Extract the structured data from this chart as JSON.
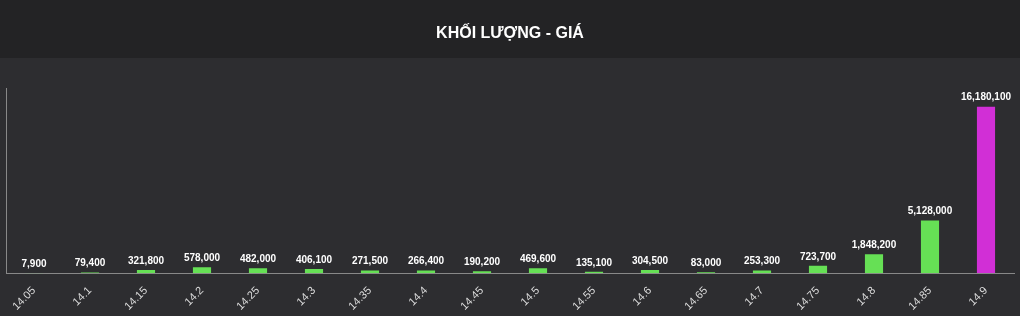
{
  "chart_data": {
    "type": "bar",
    "title": "KHỐI LƯỢNG - GIÁ",
    "categories": [
      "14.05",
      "14.1",
      "14.15",
      "14.2",
      "14.25",
      "14.3",
      "14.35",
      "14.4",
      "14.45",
      "14.5",
      "14.55",
      "14.6",
      "14.65",
      "14.7",
      "14.75",
      "14.8",
      "14.85",
      "14.9"
    ],
    "values": [
      7900,
      79400,
      321800,
      578000,
      482000,
      406100,
      271500,
      266400,
      190200,
      469600,
      135100,
      304500,
      83000,
      253300,
      723700,
      1848200,
      5128000,
      16180100
    ],
    "value_labels": [
      "7,900",
      "79,400",
      "321,800",
      "578,000",
      "482,000",
      "406,100",
      "271,500",
      "266,400",
      "190,200",
      "469,600",
      "135,100",
      "304,500",
      "83,000",
      "253,300",
      "723,700",
      "1,848,200",
      "5,128,000",
      "16,180,100"
    ],
    "colors": [
      "#66e055",
      "#66e055",
      "#66e055",
      "#66e055",
      "#66e055",
      "#66e055",
      "#66e055",
      "#66e055",
      "#66e055",
      "#66e055",
      "#66e055",
      "#66e055",
      "#66e055",
      "#66e055",
      "#66e055",
      "#66e055",
      "#66e055",
      "#d12fd6"
    ],
    "tick_labels": "x"
  }
}
